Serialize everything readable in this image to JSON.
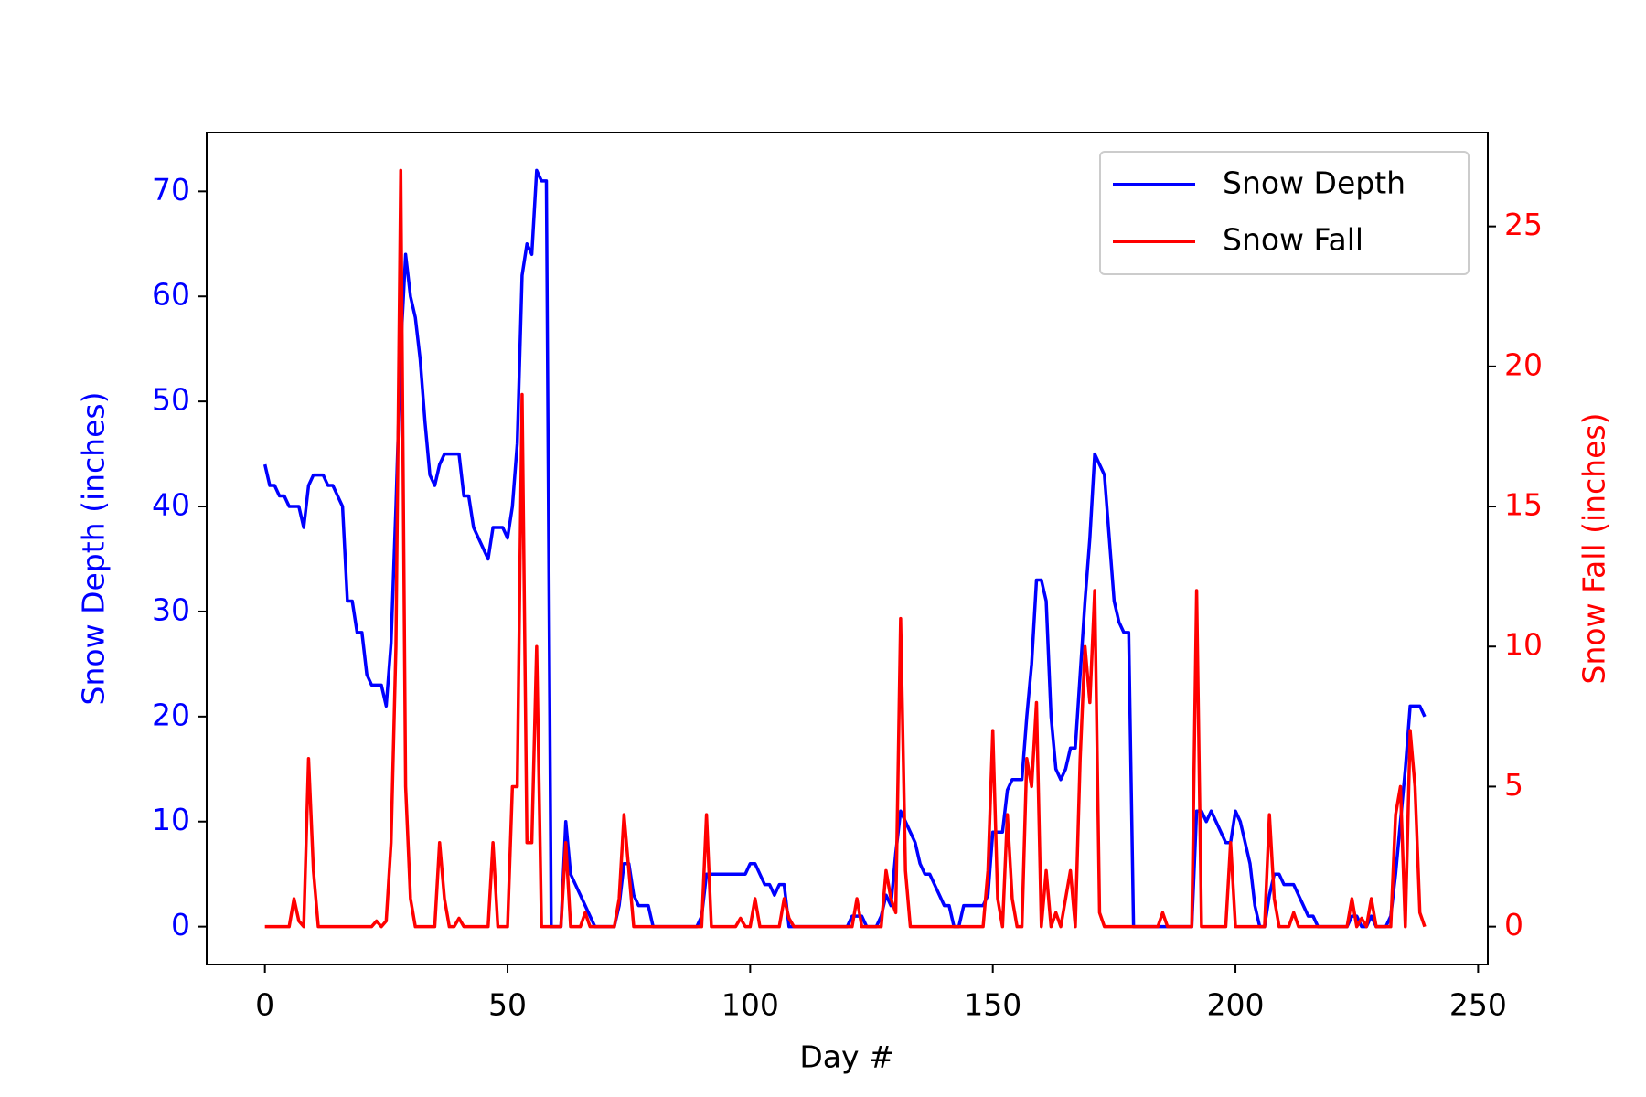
{
  "chart_data": {
    "type": "line",
    "xlabel": "Day #",
    "ylabel": "Snow Depth (inches)",
    "y2label": "Snow Fall (inches)",
    "legend": "upper right",
    "x": [
      0,
      1,
      2,
      3,
      4,
      5,
      6,
      7,
      8,
      9,
      10,
      11,
      12,
      13,
      14,
      15,
      16,
      17,
      18,
      19,
      20,
      21,
      22,
      23,
      24,
      25,
      26,
      27,
      28,
      29,
      30,
      31,
      32,
      33,
      34,
      35,
      36,
      37,
      38,
      39,
      40,
      41,
      42,
      43,
      44,
      45,
      46,
      47,
      48,
      49,
      50,
      51,
      52,
      53,
      54,
      55,
      56,
      57,
      58,
      59,
      60,
      61,
      62,
      63,
      64,
      65,
      66,
      67,
      68,
      69,
      70,
      71,
      72,
      73,
      74,
      75,
      76,
      77,
      78,
      79,
      80,
      81,
      82,
      83,
      84,
      85,
      86,
      87,
      88,
      89,
      90,
      91,
      92,
      93,
      94,
      95,
      96,
      97,
      98,
      99,
      100,
      101,
      102,
      103,
      104,
      105,
      106,
      107,
      108,
      109,
      110,
      111,
      112,
      113,
      114,
      115,
      116,
      117,
      118,
      119,
      120,
      121,
      122,
      123,
      124,
      125,
      126,
      127,
      128,
      129,
      130,
      131,
      132,
      133,
      134,
      135,
      136,
      137,
      138,
      139,
      140,
      141,
      142,
      143,
      144,
      145,
      146,
      147,
      148,
      149,
      150,
      151,
      152,
      153,
      154,
      155,
      156,
      157,
      158,
      159,
      160,
      161,
      162,
      163,
      164,
      165,
      166,
      167,
      168,
      169,
      170,
      171,
      172,
      173,
      174,
      175,
      176,
      177,
      178,
      179,
      180,
      181,
      182,
      183,
      184,
      185,
      186,
      187,
      188,
      189,
      190,
      191,
      192,
      193,
      194,
      195,
      196,
      197,
      198,
      199,
      200,
      201,
      202,
      203,
      204,
      205,
      206,
      207,
      208,
      209,
      210,
      211,
      212,
      213,
      214,
      215,
      216,
      217,
      218,
      219,
      220,
      221,
      222,
      223,
      224,
      225,
      226,
      227,
      228,
      229,
      230,
      231,
      232,
      233,
      234,
      235,
      236,
      237,
      238,
      239
    ],
    "xlim": [
      -12,
      252
    ],
    "xticks": [
      0,
      50,
      100,
      150,
      200,
      250
    ],
    "ylim": [
      -3.6,
      75.6
    ],
    "yticks": [
      0,
      10,
      20,
      30,
      40,
      50,
      60,
      70
    ],
    "y2lim": [
      -1.35,
      28.35
    ],
    "y2ticks": [
      0,
      5,
      10,
      15,
      20,
      25
    ],
    "series": [
      {
        "name": "Snow Depth",
        "color": "#0000ff",
        "values": [
          44,
          42,
          42,
          41,
          41,
          40,
          40,
          40,
          38,
          42,
          43,
          43,
          43,
          42,
          42,
          41,
          40,
          31,
          31,
          28,
          28,
          24,
          23,
          23,
          23,
          21,
          27,
          40,
          55,
          64,
          60,
          58,
          54,
          48,
          43,
          42,
          44,
          45,
          45,
          45,
          45,
          41,
          41,
          38,
          37,
          36,
          35,
          38,
          38,
          38,
          37,
          40,
          46,
          62,
          65,
          64,
          72,
          71,
          71,
          0,
          0,
          0,
          10,
          5,
          4,
          3,
          2,
          1,
          0,
          0,
          0,
          0,
          0,
          2,
          6,
          6,
          3,
          2,
          2,
          2,
          0,
          0,
          0,
          0,
          0,
          0,
          0,
          0,
          0,
          0,
          1,
          5,
          5,
          5,
          5,
          5,
          5,
          5,
          5,
          5,
          6,
          6,
          5,
          4,
          4,
          3,
          4,
          4,
          0,
          0,
          0,
          0,
          0,
          0,
          0,
          0,
          0,
          0,
          0,
          0,
          0,
          1,
          1,
          1,
          0,
          0,
          0,
          1,
          3,
          2,
          7,
          11,
          10,
          9,
          8,
          6,
          5,
          5,
          4,
          3,
          2,
          2,
          0,
          0,
          2,
          2,
          2,
          2,
          2,
          3,
          9,
          9,
          9,
          13,
          14,
          14,
          14,
          20,
          25,
          33,
          33,
          31,
          20,
          15,
          14,
          15,
          17,
          17,
          24,
          31,
          37,
          45,
          44,
          43,
          37,
          31,
          29,
          28,
          28,
          0,
          0,
          0,
          0,
          0,
          0,
          0,
          0,
          0,
          0,
          0,
          0,
          0,
          11,
          11,
          10,
          11,
          10,
          9,
          8,
          8,
          11,
          10,
          8,
          6,
          2,
          0,
          0,
          3,
          5,
          5,
          4,
          4,
          4,
          3,
          2,
          1,
          1,
          0,
          0,
          0,
          0,
          0,
          0,
          0,
          1,
          1,
          0,
          0,
          1,
          0,
          0,
          0,
          1,
          5,
          10,
          15,
          21,
          21,
          21,
          20
        ]
      },
      {
        "name": "Snow Fall",
        "color": "#ff0000",
        "axis": "y2",
        "values": [
          0,
          0,
          0,
          0,
          0,
          0,
          1,
          0.2,
          0,
          6,
          2,
          0,
          0,
          0,
          0,
          0,
          0,
          0,
          0,
          0,
          0,
          0,
          0,
          0.2,
          0,
          0.2,
          3,
          10,
          27,
          5,
          1,
          0,
          0,
          0,
          0,
          0,
          3,
          1,
          0,
          0,
          0.3,
          0,
          0,
          0,
          0,
          0,
          0,
          3,
          0,
          0,
          0,
          5,
          5,
          19,
          3,
          3,
          10,
          0,
          0,
          0,
          0,
          0,
          3,
          0,
          0,
          0,
          0.5,
          0,
          0,
          0,
          0,
          0,
          0,
          1,
          4,
          2,
          0,
          0,
          0,
          0,
          0,
          0,
          0,
          0,
          0,
          0,
          0,
          0,
          0,
          0,
          0,
          4,
          0,
          0,
          0,
          0,
          0,
          0,
          0.3,
          0,
          0,
          1,
          0,
          0,
          0,
          0,
          0,
          1,
          0.3,
          0,
          0,
          0,
          0,
          0,
          0,
          0,
          0,
          0,
          0,
          0,
          0,
          0,
          1,
          0,
          0,
          0,
          0,
          0,
          2,
          1,
          0.5,
          11,
          2,
          0,
          0,
          0,
          0,
          0,
          0,
          0,
          0,
          0,
          0,
          0,
          0,
          0,
          0,
          0,
          0,
          2,
          7,
          1,
          0,
          4,
          1,
          0,
          0,
          6,
          5,
          8,
          0,
          2,
          0,
          0.5,
          0,
          1,
          2,
          0,
          6,
          10,
          8,
          12,
          0.5,
          0,
          0,
          0,
          0,
          0,
          0,
          0,
          0,
          0,
          0,
          0,
          0,
          0.5,
          0,
          0,
          0,
          0,
          0,
          0,
          12,
          0,
          0,
          0,
          0,
          0,
          0,
          3,
          0,
          0,
          0,
          0,
          0,
          0,
          0,
          4,
          1,
          0,
          0,
          0,
          0.5,
          0,
          0,
          0,
          0,
          0,
          0,
          0,
          0,
          0,
          0,
          0,
          1,
          0,
          0.3,
          0,
          1,
          0,
          0,
          0,
          0,
          4,
          5,
          0,
          7,
          5,
          0.5,
          0
        ]
      }
    ]
  }
}
